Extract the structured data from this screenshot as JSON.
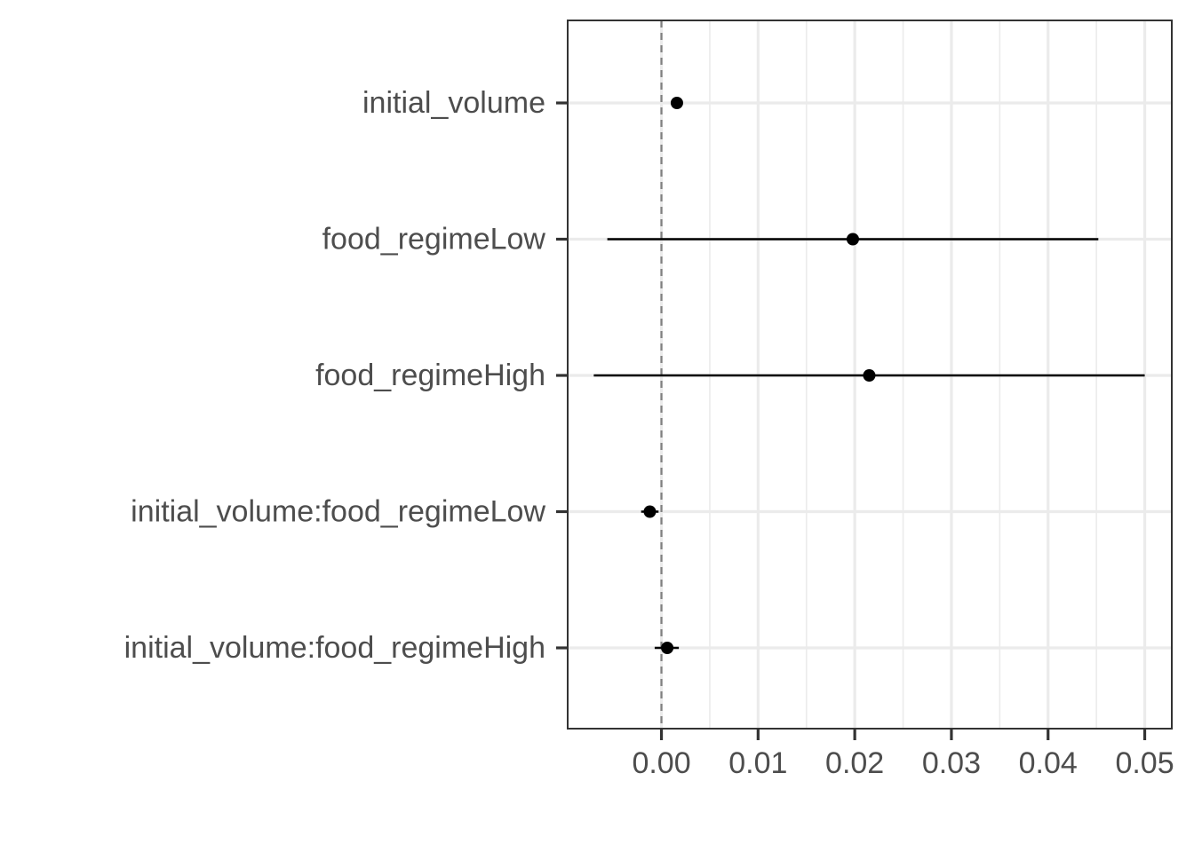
{
  "chart_data": {
    "type": "scatter",
    "subtype": "coefficient-plot",
    "title": "",
    "xlabel": "",
    "ylabel": "",
    "xlim": [
      -0.0097,
      0.0528
    ],
    "x_major_ticks": [
      0.0,
      0.01,
      0.02,
      0.03,
      0.04,
      0.05
    ],
    "x_tick_labels": [
      "0.00",
      "0.01",
      "0.02",
      "0.03",
      "0.04",
      "0.05"
    ],
    "x_minor_ticks": [
      0.005,
      0.015,
      0.025,
      0.035,
      0.045
    ],
    "reference_line": {
      "x": 0,
      "style": "dashed",
      "color": "#808080"
    },
    "grid": true,
    "legend": "none",
    "categories": [
      "initial_volume",
      "food_regimeLow",
      "food_regimeHigh",
      "initial_volume:food_regimeLow",
      "initial_volume:food_regimeHigh"
    ],
    "estimates": [
      0.0016,
      0.0198,
      0.0215,
      -0.0012,
      0.0006
    ],
    "lower": [
      0.0012,
      -0.0056,
      -0.007,
      -0.0021,
      -0.0007
    ],
    "upper": [
      0.002,
      0.0452,
      0.05,
      -0.0003,
      0.0018
    ]
  }
}
